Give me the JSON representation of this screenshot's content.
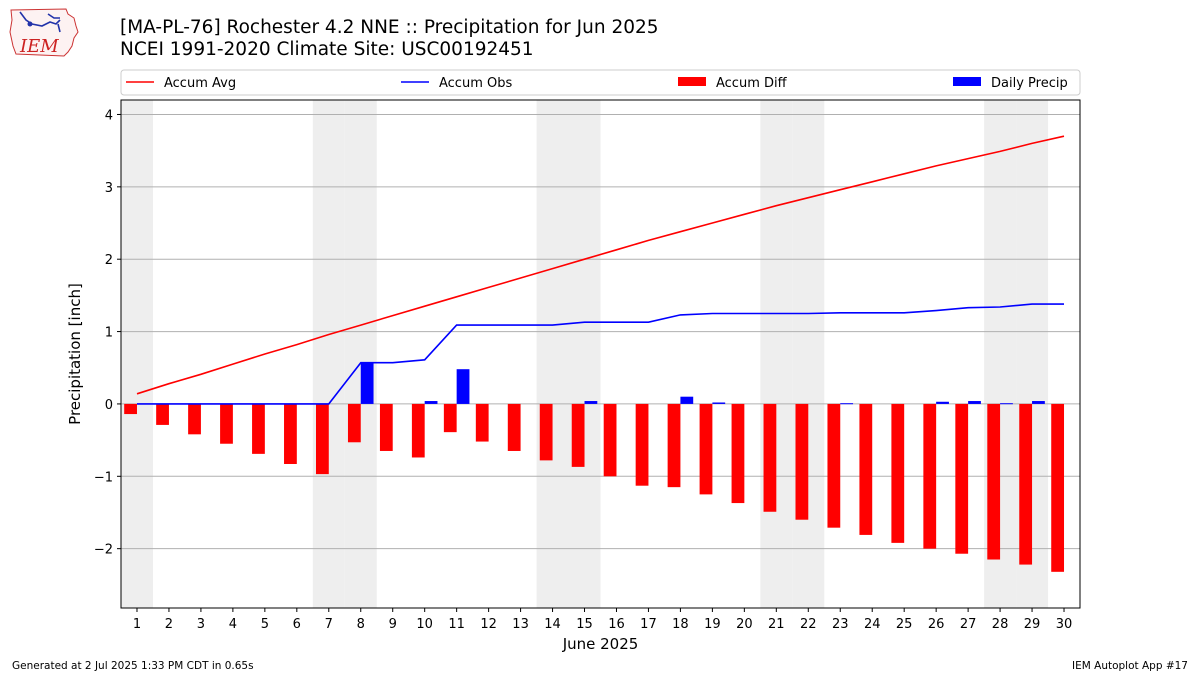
{
  "header": {
    "title": "[MA-PL-76] Rochester 4.2 NNE :: Precipitation for Jun 2025",
    "subtitle": "NCEI 1991-2020 Climate Site: USC00192451"
  },
  "logo": {
    "text": "IEM",
    "icon": "iowa-state-outline-icon"
  },
  "footer": {
    "generated": "Generated at 2 Jul 2025 1:33 PM CDT in 0.65s",
    "app": "IEM Autoplot App #17"
  },
  "chart_data": {
    "type": "bar",
    "xlabel": "June 2025",
    "ylabel": "Precipitation [inch]",
    "xlim": [
      0.5,
      30.5
    ],
    "ylim": [
      -2.82,
      4.2
    ],
    "yticks": [
      -2,
      -1,
      0,
      1,
      2,
      3,
      4
    ],
    "grid": "horizontal",
    "legend_position": "top",
    "weekend_shading": [
      1,
      7,
      8,
      14,
      15,
      21,
      22,
      28,
      29
    ],
    "x": [
      1,
      2,
      3,
      4,
      5,
      6,
      7,
      8,
      9,
      10,
      11,
      12,
      13,
      14,
      15,
      16,
      17,
      18,
      19,
      20,
      21,
      22,
      23,
      24,
      25,
      26,
      27,
      28,
      29,
      30
    ],
    "series": [
      {
        "name": "Accum Avg",
        "kind": "line",
        "color": "#ff0000",
        "values": [
          0.14,
          0.28,
          0.41,
          0.55,
          0.69,
          0.82,
          0.96,
          1.09,
          1.22,
          1.35,
          1.48,
          1.61,
          1.74,
          1.87,
          2.0,
          2.13,
          2.26,
          2.38,
          2.5,
          2.62,
          2.74,
          2.85,
          2.96,
          3.07,
          3.18,
          3.29,
          3.39,
          3.49,
          3.6,
          3.7
        ]
      },
      {
        "name": "Accum Obs",
        "kind": "line",
        "color": "#0000ff",
        "values": [
          0.0,
          0.0,
          0.0,
          0.0,
          0.0,
          0.0,
          0.0,
          0.57,
          0.57,
          0.61,
          1.09,
          1.09,
          1.09,
          1.09,
          1.13,
          1.13,
          1.13,
          1.23,
          1.25,
          1.25,
          1.25,
          1.25,
          1.26,
          1.26,
          1.26,
          1.29,
          1.33,
          1.34,
          1.38,
          1.38
        ]
      },
      {
        "name": "Accum Diff",
        "kind": "bar",
        "color": "#ff0000",
        "values": [
          -0.14,
          -0.29,
          -0.42,
          -0.55,
          -0.69,
          -0.83,
          -0.97,
          -0.53,
          -0.65,
          -0.74,
          -0.39,
          -0.52,
          -0.65,
          -0.78,
          -0.87,
          -1.0,
          -1.13,
          -1.15,
          -1.25,
          -1.37,
          -1.49,
          -1.6,
          -1.71,
          -1.81,
          -1.92,
          -2.0,
          -2.07,
          -2.15,
          -2.22,
          -2.32
        ]
      },
      {
        "name": "Daily Precip",
        "kind": "bar",
        "color": "#0000ff",
        "values": [
          0,
          0,
          0,
          0,
          0,
          0,
          0,
          0.57,
          0,
          0.04,
          0.48,
          0,
          0,
          0,
          0.04,
          0,
          0,
          0.1,
          0.02,
          0,
          0,
          0,
          0.01,
          0,
          0,
          0.03,
          0.04,
          0.01,
          0.04,
          0
        ]
      }
    ]
  }
}
